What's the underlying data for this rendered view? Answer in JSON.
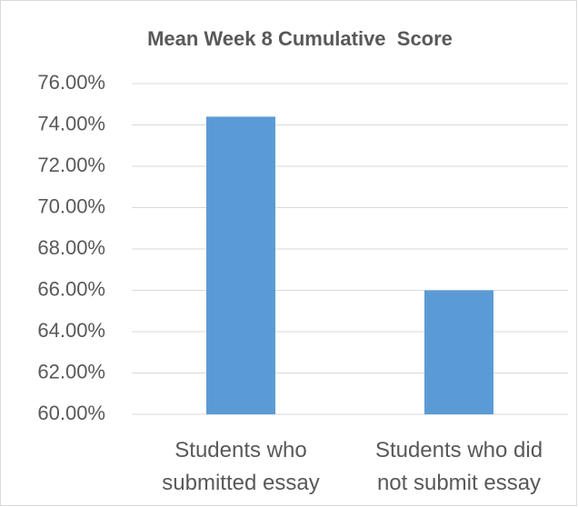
{
  "chart_data": {
    "type": "bar",
    "title": "Mean Week 8 Cumulative  Score",
    "categories": [
      "Students who submitted essay",
      "Students who did not submit essay"
    ],
    "values": [
      74.4,
      66.0
    ],
    "color": "#5b9bd5",
    "ylim": [
      60,
      76
    ],
    "yticks": [
      {
        "value": 60,
        "label": "60.00%"
      },
      {
        "value": 62,
        "label": "62.00%"
      },
      {
        "value": 64,
        "label": "64.00%"
      },
      {
        "value": 66,
        "label": "66.00%"
      },
      {
        "value": 68,
        "label": "68.00%"
      },
      {
        "value": 70,
        "label": "70.00%"
      },
      {
        "value": 72,
        "label": "72.00%"
      },
      {
        "value": 74,
        "label": "74.00%"
      },
      {
        "value": 76,
        "label": "76.00%"
      }
    ],
    "grid": true
  }
}
